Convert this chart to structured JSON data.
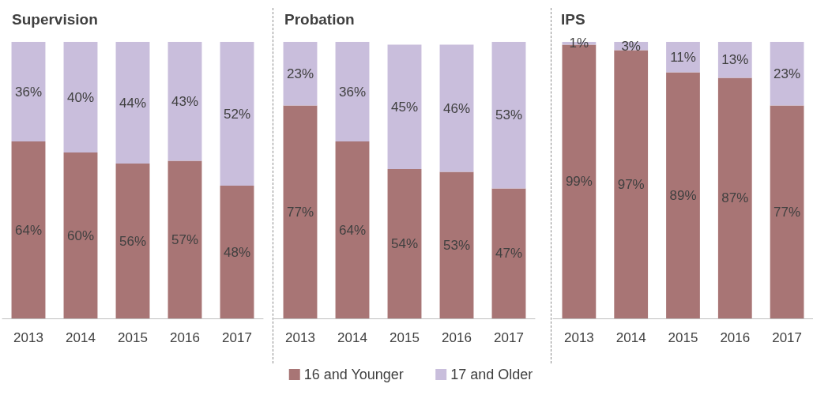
{
  "chart_data": [
    {
      "type": "bar",
      "title": "Supervision",
      "stacked": true,
      "legend": false,
      "ylim": [
        0,
        100
      ],
      "categories": [
        "2013",
        "2014",
        "2015",
        "2016",
        "2017"
      ],
      "series": [
        {
          "color": "#a87575",
          "values": [
            64,
            60,
            56,
            57,
            48
          ],
          "value_labels": [
            "64%",
            "60%",
            "56%",
            "57%",
            "48%"
          ]
        },
        {
          "color": "#c9bedc",
          "values": [
            36,
            40,
            44,
            43,
            52
          ],
          "value_labels": [
            "36%",
            "40%",
            "44%",
            "43%",
            "52%"
          ]
        }
      ]
    },
    {
      "type": "bar",
      "title": "Probation",
      "stacked": true,
      "legend": "bottom",
      "ylim": [
        0,
        100
      ],
      "categories": [
        "2013",
        "2014",
        "2015",
        "2016",
        "2017"
      ],
      "series": [
        {
          "name": "16 and Younger",
          "color": "#a87575",
          "values": [
            77,
            64,
            54,
            53,
            47
          ],
          "value_labels": [
            "77%",
            "64%",
            "54%",
            "53%",
            "47%"
          ]
        },
        {
          "name": "17 and Older",
          "color": "#c9bedc",
          "values": [
            23,
            36,
            45,
            46,
            53
          ],
          "value_labels": [
            "23%",
            "36%",
            "45%",
            "46%",
            "53%"
          ]
        }
      ]
    },
    {
      "type": "bar",
      "title": "IPS",
      "stacked": true,
      "legend": false,
      "ylim": [
        0,
        100
      ],
      "categories": [
        "2013",
        "2014",
        "2015",
        "2016",
        "2017"
      ],
      "series": [
        {
          "color": "#a87575",
          "values": [
            99,
            97,
            89,
            87,
            77
          ],
          "value_labels": [
            "99%",
            "97%",
            "89%",
            "87%",
            "77%"
          ]
        },
        {
          "color": "#c9bedc",
          "values": [
            1,
            3,
            11,
            13,
            23
          ],
          "value_labels": [
            "1%",
            "3%",
            "11%",
            "13%",
            "23%"
          ]
        }
      ]
    }
  ]
}
